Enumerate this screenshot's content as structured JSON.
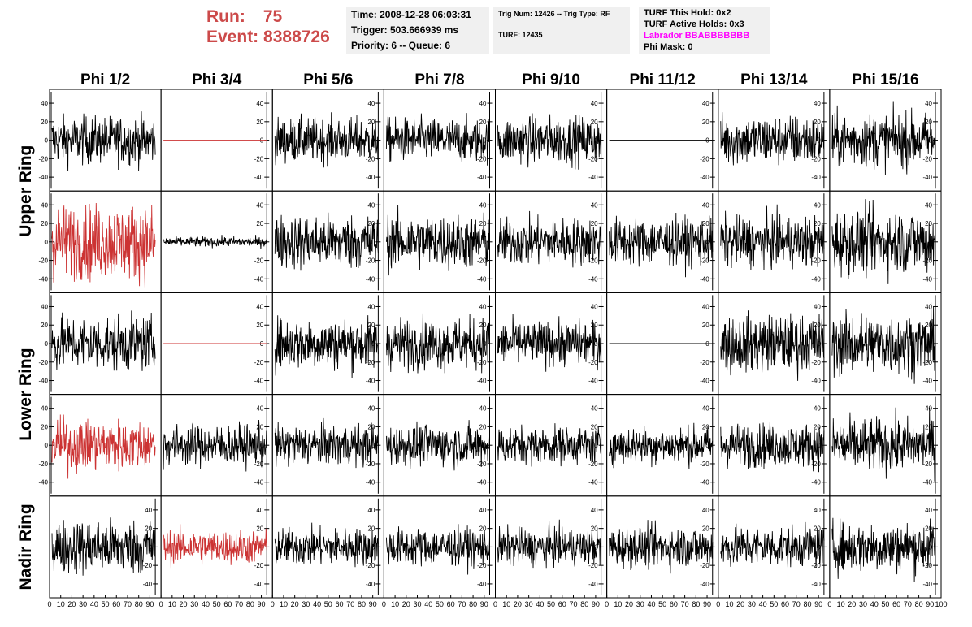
{
  "header": {
    "run_label": "Run:",
    "run_value": "75",
    "event_label": "Event:",
    "event_value": "8388726",
    "time": "Time: 2008-12-28 06:03:31",
    "trigger": "Trigger: 503.666939 ms",
    "priority": "Priority: 6 -- Queue: 6",
    "trig_info": "Trig Num: 12426 -- Trig Type: RF",
    "turf": "TURF: 12435",
    "turf_this_hold": "TURF This Hold: 0x2",
    "turf_active_holds": "TURF Active Holds: 0x3",
    "labrador": "Labrador BBABBBBBBB",
    "phi_mask": "Phi Mask: 0"
  },
  "colors": {
    "highlight": "#cc3333",
    "normal": "#000000",
    "header_text": "#cc4a4a",
    "labrador": "#ff00ff"
  },
  "chart_data": {
    "type": "line",
    "columns": [
      "Phi 1/2",
      "Phi 3/4",
      "Phi 5/6",
      "Phi 7/8",
      "Phi 9/10",
      "Phi 11/12",
      "Phi 13/14",
      "Phi 15/16"
    ],
    "row_groups": [
      "Upper Ring",
      "Lower Ring",
      "Nadir Ring"
    ],
    "rows": 5,
    "ylim": [
      -55,
      55
    ],
    "yticks": [
      "40",
      "20",
      "0",
      "-20",
      "-40"
    ],
    "xlim": [
      0,
      100
    ],
    "xticks": [
      "0",
      "10",
      "20",
      "30",
      "40",
      "50",
      "60",
      "70",
      "80",
      "90",
      "100"
    ],
    "panels": [
      [
        {
          "style": "noise",
          "amp": 14,
          "color": "normal"
        },
        {
          "style": "flat",
          "color": "highlight"
        },
        {
          "style": "noise",
          "amp": 13,
          "color": "normal"
        },
        {
          "style": "noise",
          "amp": 13,
          "color": "normal"
        },
        {
          "style": "noise",
          "amp": 14,
          "color": "normal"
        },
        {
          "style": "flat",
          "color": "normal"
        },
        {
          "style": "noise",
          "amp": 15,
          "color": "normal"
        },
        {
          "style": "noise",
          "amp": 16,
          "color": "normal"
        }
      ],
      [
        {
          "style": "noise",
          "amp": 22,
          "color": "highlight"
        },
        {
          "style": "noise",
          "amp": 3,
          "color": "normal"
        },
        {
          "style": "noise",
          "amp": 16,
          "color": "normal"
        },
        {
          "style": "noise",
          "amp": 16,
          "color": "normal"
        },
        {
          "style": "noise",
          "amp": 14,
          "color": "normal"
        },
        {
          "style": "noise",
          "amp": 14,
          "color": "normal"
        },
        {
          "style": "noise",
          "amp": 15,
          "color": "normal"
        },
        {
          "style": "noise",
          "amp": 19,
          "color": "normal"
        }
      ],
      [
        {
          "style": "noise",
          "amp": 16,
          "color": "normal"
        },
        {
          "style": "flat",
          "color": "highlight"
        },
        {
          "style": "noise",
          "amp": 15,
          "color": "normal"
        },
        {
          "style": "noise",
          "amp": 15,
          "color": "normal"
        },
        {
          "style": "noise",
          "amp": 13,
          "color": "normal"
        },
        {
          "style": "flat",
          "color": "normal"
        },
        {
          "style": "noise",
          "amp": 17,
          "color": "normal"
        },
        {
          "style": "noise",
          "amp": 18,
          "color": "normal"
        }
      ],
      [
        {
          "style": "noise",
          "amp": 15,
          "color": "highlight"
        },
        {
          "style": "noise",
          "amp": 12,
          "color": "normal"
        },
        {
          "style": "noise",
          "amp": 12,
          "color": "normal"
        },
        {
          "style": "noise",
          "amp": 12,
          "color": "normal"
        },
        {
          "style": "noise",
          "amp": 11,
          "color": "normal"
        },
        {
          "style": "noise",
          "amp": 11,
          "color": "normal"
        },
        {
          "style": "noise",
          "amp": 13,
          "color": "normal"
        },
        {
          "style": "noise",
          "amp": 16,
          "color": "normal"
        }
      ],
      [
        {
          "style": "noise",
          "amp": 16,
          "color": "normal"
        },
        {
          "style": "noise",
          "amp": 10,
          "color": "highlight"
        },
        {
          "style": "noise",
          "amp": 11,
          "color": "normal"
        },
        {
          "style": "noise",
          "amp": 11,
          "color": "normal"
        },
        {
          "style": "noise",
          "amp": 11,
          "color": "normal"
        },
        {
          "style": "noise",
          "amp": 12,
          "color": "normal"
        },
        {
          "style": "noise",
          "amp": 12,
          "color": "normal"
        },
        {
          "style": "noise",
          "amp": 15,
          "color": "normal"
        }
      ]
    ]
  }
}
